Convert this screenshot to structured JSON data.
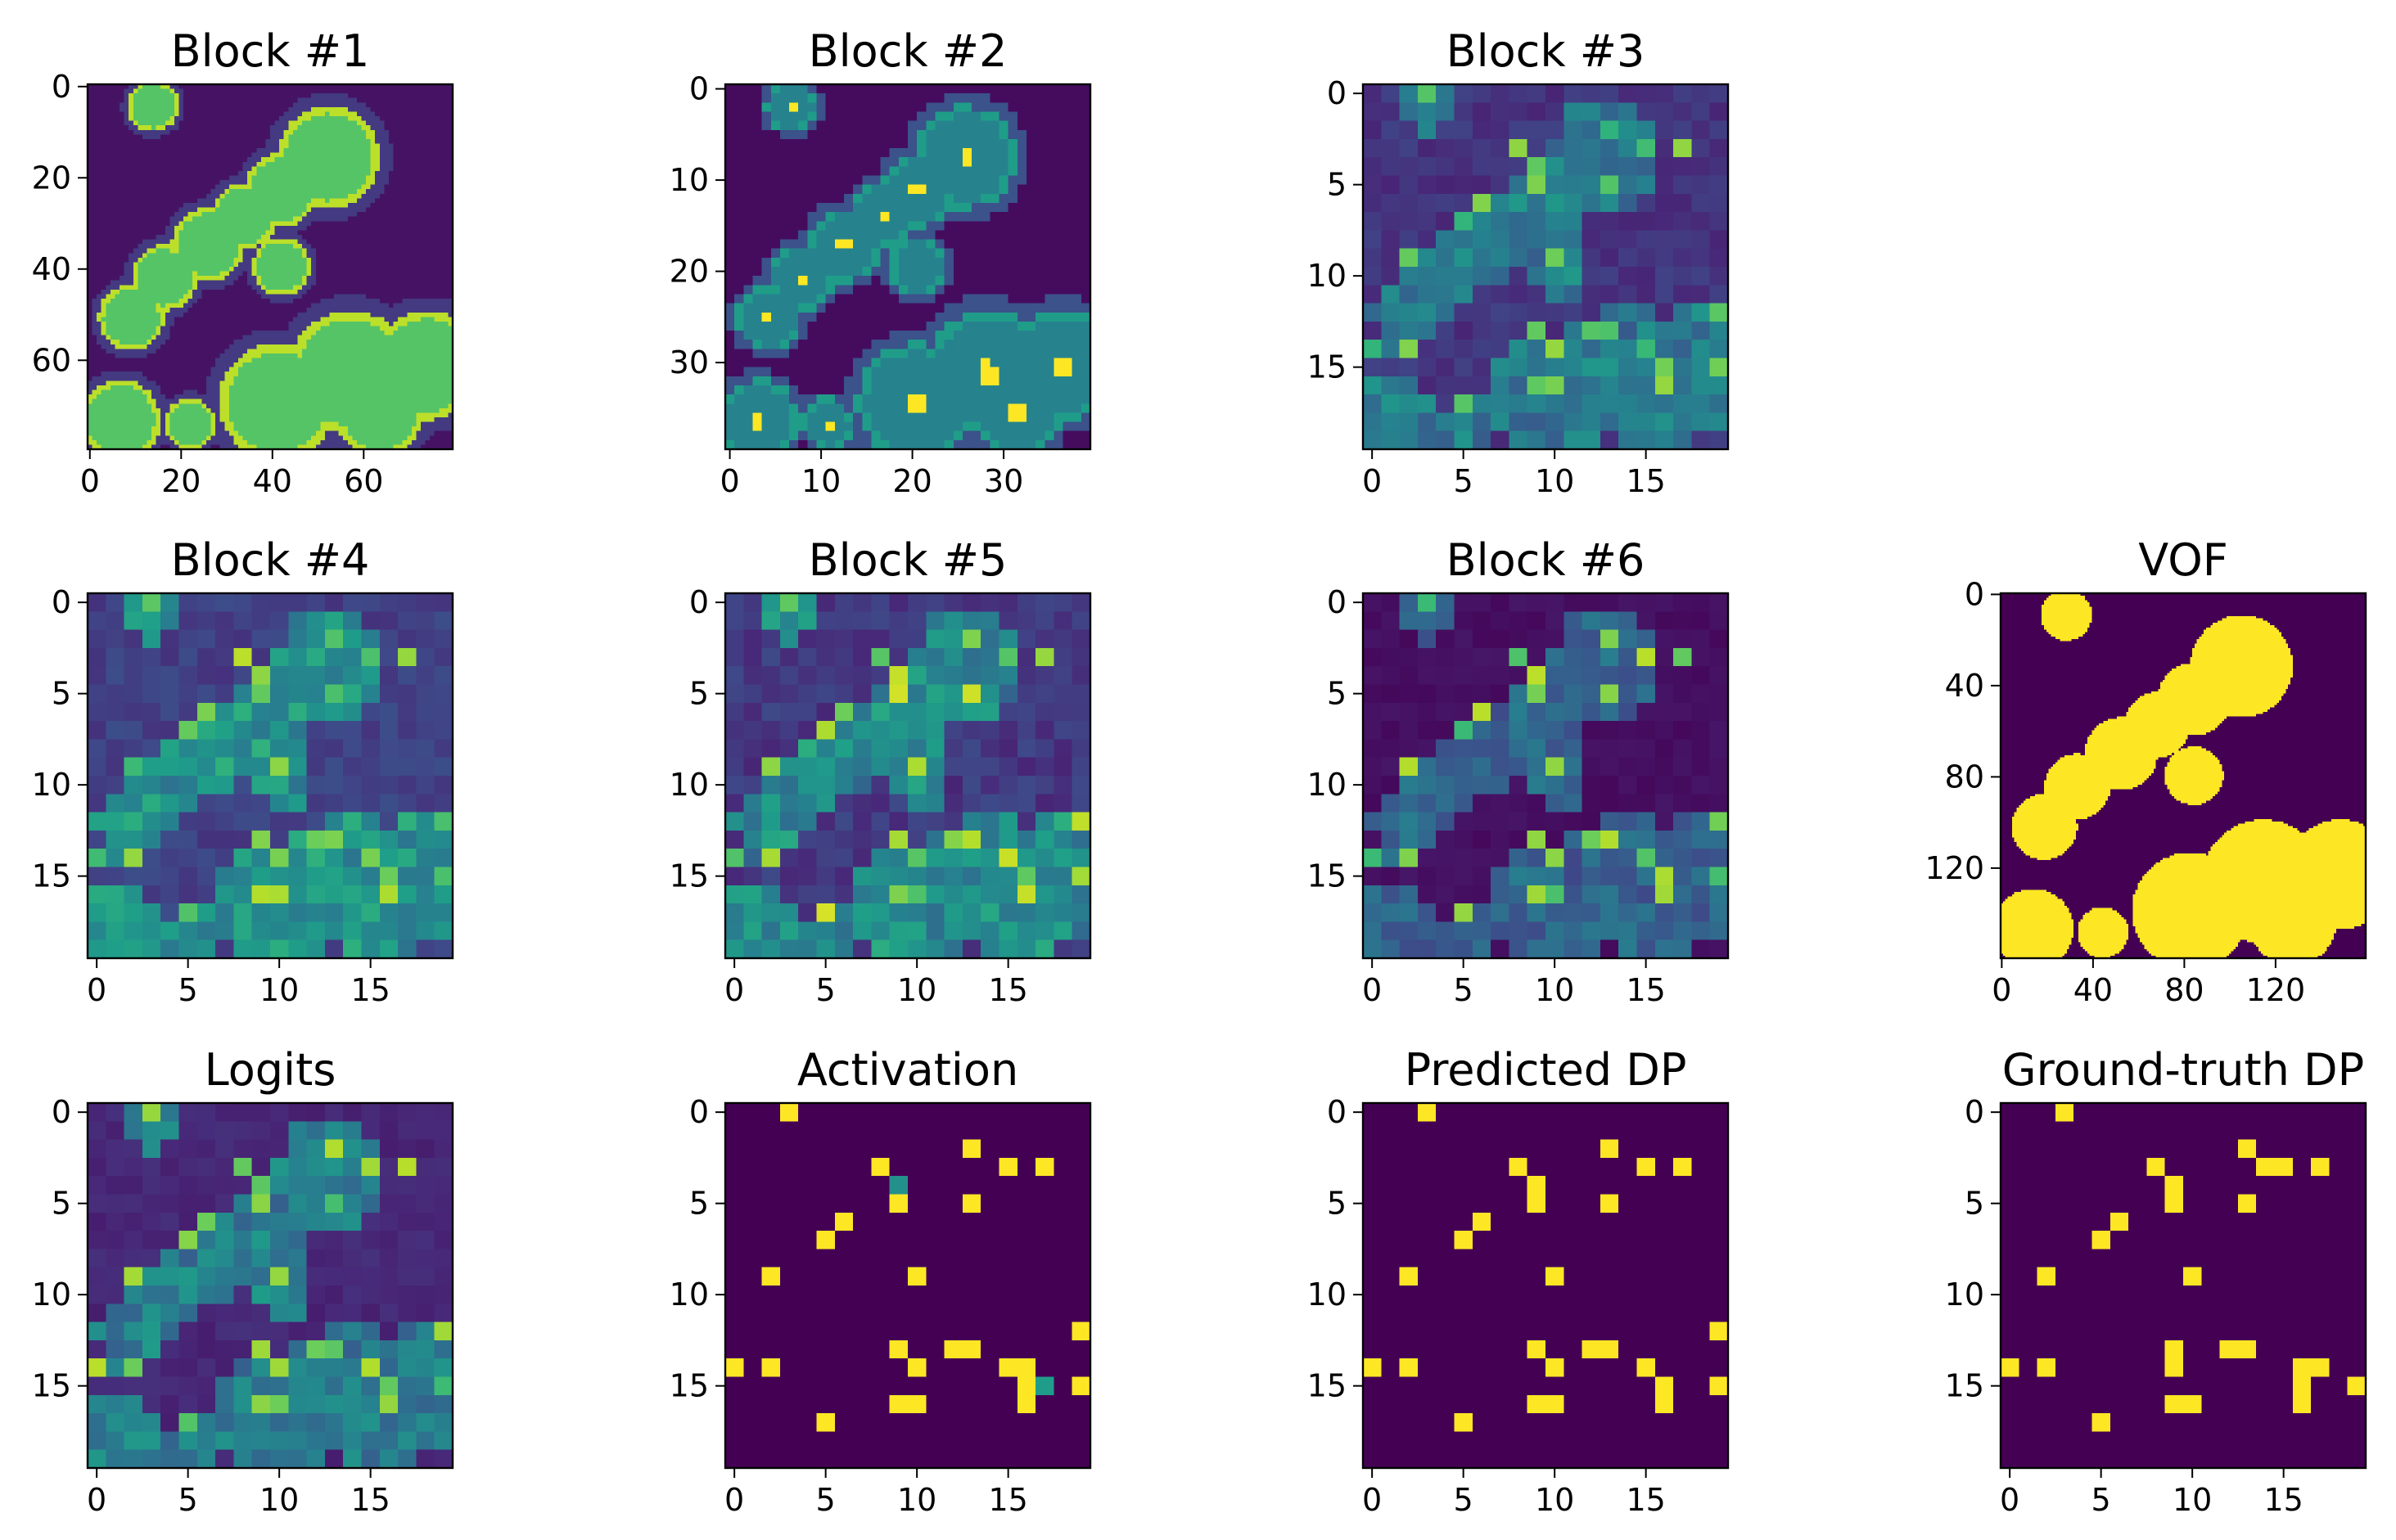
{
  "figure": {
    "background": "#ffffff"
  },
  "colormap": "viridis",
  "chart_data": [
    {
      "type": "heatmap",
      "title": "Block #1",
      "resolution": 80,
      "xticks": [
        "0",
        "20",
        "40",
        "60"
      ],
      "yticks": [
        "0",
        "20",
        "40",
        "60"
      ],
      "tick_values": [
        0,
        20,
        40,
        60
      ],
      "extent": 80,
      "render": {
        "kind": "vof",
        "fill": 0.73,
        "edge": 0.9,
        "outside": 0.05,
        "halo": 0.12
      }
    },
    {
      "type": "heatmap",
      "title": "Block #2",
      "resolution": 40,
      "xticks": [
        "0",
        "10",
        "20",
        "30"
      ],
      "yticks": [
        "0",
        "10",
        "20",
        "30"
      ],
      "tick_values": [
        0,
        10,
        20,
        30
      ],
      "extent": 40,
      "render": {
        "kind": "vof",
        "fill": 0.45,
        "edge": 0.55,
        "outside": 0.03,
        "halo": 0.22,
        "hotspots": true
      }
    },
    {
      "type": "heatmap",
      "title": "Block #3",
      "resolution": 20,
      "xticks": [
        "0",
        "5",
        "10",
        "15"
      ],
      "yticks": [
        "0",
        "5",
        "10",
        "15"
      ],
      "tick_values": [
        0,
        5,
        10,
        15
      ],
      "extent": 20,
      "render": {
        "kind": "grid",
        "base": 0.1,
        "noise": 0.1,
        "cluster": 0.35,
        "point_scale": 0.85,
        "seed": 3
      }
    },
    {
      "type": "heatmap",
      "title": "Block #4",
      "resolution": 20,
      "xticks": [
        "0",
        "5",
        "10",
        "15"
      ],
      "yticks": [
        "0",
        "5",
        "10",
        "15"
      ],
      "tick_values": [
        0,
        5,
        10,
        15
      ],
      "extent": 20,
      "render": {
        "kind": "grid",
        "base": 0.14,
        "noise": 0.1,
        "cluster": 0.42,
        "point_scale": 0.9,
        "seed": 4
      }
    },
    {
      "type": "heatmap",
      "title": "Block #5",
      "resolution": 20,
      "xticks": [
        "0",
        "5",
        "10",
        "15"
      ],
      "yticks": [
        "0",
        "5",
        "10",
        "15"
      ],
      "tick_values": [
        0,
        5,
        10,
        15
      ],
      "extent": 20,
      "render": {
        "kind": "grid",
        "base": 0.1,
        "noise": 0.12,
        "cluster": 0.42,
        "point_scale": 0.95,
        "seed": 5
      }
    },
    {
      "type": "heatmap",
      "title": "Block #6",
      "resolution": 20,
      "xticks": [
        "0",
        "5",
        "10",
        "15"
      ],
      "yticks": [
        "0",
        "5",
        "10",
        "15"
      ],
      "tick_values": [
        0,
        5,
        10,
        15
      ],
      "extent": 20,
      "render": {
        "kind": "grid",
        "base": 0.02,
        "noise": 0.04,
        "cluster": 0.38,
        "point_scale": 0.9,
        "seed": 6
      }
    },
    {
      "type": "heatmap",
      "title": "VOF",
      "resolution": 160,
      "xticks": [
        "0",
        "40",
        "80",
        "120"
      ],
      "yticks": [
        "0",
        "40",
        "80",
        "120"
      ],
      "tick_values": [
        0,
        40,
        80,
        120
      ],
      "extent": 160,
      "render": {
        "kind": "vof",
        "fill": 1.0,
        "edge": 1.0,
        "outside": 0.0,
        "halo": 0.0
      }
    },
    {
      "type": "heatmap",
      "title": "Logits",
      "resolution": 20,
      "xticks": [
        "0",
        "5",
        "10",
        "15"
      ],
      "yticks": [
        "0",
        "5",
        "10",
        "15"
      ],
      "tick_values": [
        0,
        5,
        10,
        15
      ],
      "extent": 20,
      "render": {
        "kind": "grid",
        "base": 0.08,
        "noise": 0.06,
        "cluster": 0.42,
        "point_scale": 0.9,
        "seed": 8
      }
    },
    {
      "type": "heatmap",
      "title": "Activation",
      "resolution": 20,
      "xticks": [
        "0",
        "5",
        "10",
        "15"
      ],
      "yticks": [
        "0",
        "5",
        "10",
        "15"
      ],
      "tick_values": [
        0,
        5,
        10,
        15
      ],
      "extent": 20,
      "render": {
        "kind": "binary",
        "set": "activation",
        "partial": [
          [
            4,
            9,
            0.5
          ],
          [
            15,
            17,
            0.55
          ]
        ]
      }
    },
    {
      "type": "heatmap",
      "title": "Predicted DP",
      "resolution": 20,
      "xticks": [
        "0",
        "5",
        "10",
        "15"
      ],
      "yticks": [
        "0",
        "5",
        "10",
        "15"
      ],
      "tick_values": [
        0,
        5,
        10,
        15
      ],
      "extent": 20,
      "render": {
        "kind": "binary",
        "set": "predicted"
      }
    },
    {
      "type": "heatmap",
      "title": "Ground-truth DP",
      "resolution": 20,
      "xticks": [
        "0",
        "5",
        "10",
        "15"
      ],
      "yticks": [
        "0",
        "5",
        "10",
        "15"
      ],
      "tick_values": [
        0,
        5,
        10,
        15
      ],
      "extent": 20,
      "render": {
        "kind": "binary",
        "set": "ground_truth"
      }
    }
  ],
  "droplet_points": {
    "predicted": [
      [
        0,
        3
      ],
      [
        2,
        13
      ],
      [
        3,
        8
      ],
      [
        3,
        15
      ],
      [
        3,
        17
      ],
      [
        4,
        9
      ],
      [
        5,
        9
      ],
      [
        5,
        13
      ],
      [
        6,
        6
      ],
      [
        7,
        5
      ],
      [
        9,
        2
      ],
      [
        9,
        10
      ],
      [
        13,
        9
      ],
      [
        13,
        12
      ],
      [
        13,
        13
      ],
      [
        14,
        0
      ],
      [
        14,
        2
      ],
      [
        14,
        10
      ],
      [
        14,
        15
      ],
      [
        15,
        16
      ],
      [
        15,
        19
      ],
      [
        16,
        9
      ],
      [
        16,
        10
      ],
      [
        16,
        16
      ],
      [
        17,
        5
      ],
      [
        12,
        19
      ]
    ],
    "activation": [
      [
        0,
        3
      ],
      [
        2,
        13
      ],
      [
        3,
        8
      ],
      [
        3,
        15
      ],
      [
        3,
        17
      ],
      [
        4,
        9
      ],
      [
        5,
        9
      ],
      [
        5,
        13
      ],
      [
        6,
        6
      ],
      [
        7,
        5
      ],
      [
        9,
        2
      ],
      [
        9,
        10
      ],
      [
        13,
        9
      ],
      [
        13,
        12
      ],
      [
        13,
        13
      ],
      [
        14,
        0
      ],
      [
        14,
        2
      ],
      [
        14,
        10
      ],
      [
        14,
        15
      ],
      [
        14,
        16
      ],
      [
        15,
        16
      ],
      [
        15,
        19
      ],
      [
        16,
        9
      ],
      [
        16,
        10
      ],
      [
        16,
        16
      ],
      [
        17,
        5
      ],
      [
        12,
        19
      ]
    ],
    "ground_truth": [
      [
        0,
        3
      ],
      [
        2,
        13
      ],
      [
        3,
        8
      ],
      [
        3,
        14
      ],
      [
        3,
        15
      ],
      [
        3,
        17
      ],
      [
        4,
        9
      ],
      [
        5,
        9
      ],
      [
        5,
        13
      ],
      [
        6,
        6
      ],
      [
        7,
        5
      ],
      [
        9,
        2
      ],
      [
        9,
        10
      ],
      [
        13,
        9
      ],
      [
        13,
        12
      ],
      [
        13,
        13
      ],
      [
        14,
        0
      ],
      [
        14,
        2
      ],
      [
        14,
        9
      ],
      [
        14,
        16
      ],
      [
        14,
        17
      ],
      [
        15,
        16
      ],
      [
        15,
        19
      ],
      [
        16,
        9
      ],
      [
        16,
        10
      ],
      [
        16,
        16
      ],
      [
        17,
        5
      ]
    ]
  },
  "droplets_normalized": [
    [
      0.18,
      0.06,
      0.07
    ],
    [
      0.66,
      0.2,
      0.14
    ],
    [
      0.53,
      0.29,
      0.1
    ],
    [
      0.43,
      0.36,
      0.09
    ],
    [
      0.33,
      0.44,
      0.1
    ],
    [
      0.21,
      0.53,
      0.09
    ],
    [
      0.12,
      0.64,
      0.09
    ],
    [
      0.53,
      0.5,
      0.08
    ],
    [
      0.09,
      0.92,
      0.11
    ],
    [
      0.28,
      0.93,
      0.07
    ],
    [
      0.52,
      0.87,
      0.16
    ],
    [
      0.72,
      0.79,
      0.17
    ],
    [
      0.93,
      0.77,
      0.15
    ],
    [
      0.8,
      0.9,
      0.12
    ]
  ]
}
